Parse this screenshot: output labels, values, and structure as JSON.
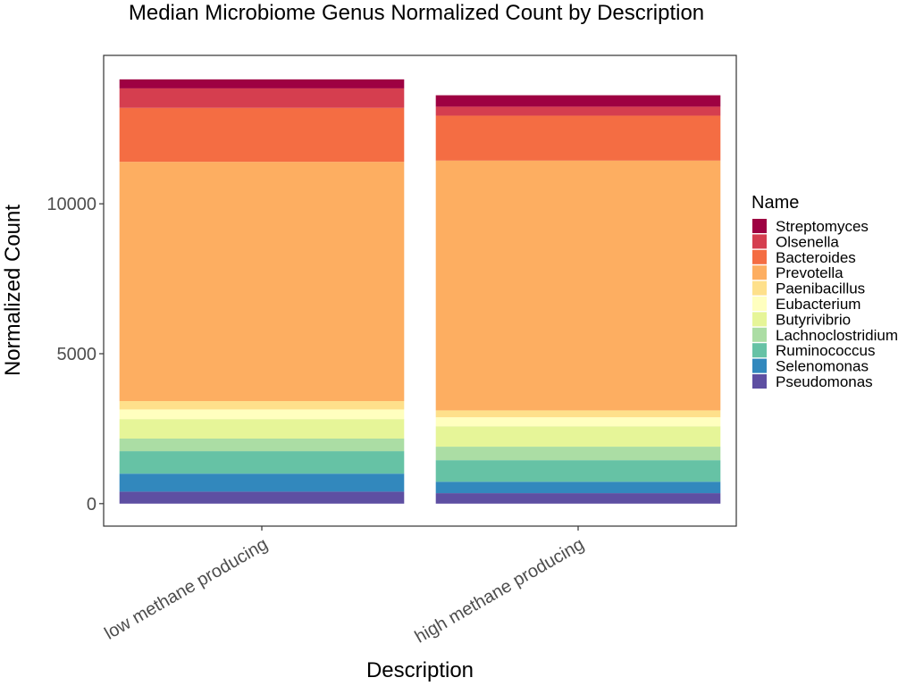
{
  "chart_data": {
    "type": "bar",
    "stacked": true,
    "title": "Median Microbiome Genus Normalized Count by Description",
    "xlabel": "Description",
    "ylabel": "Normalized Count",
    "categories": [
      "low methane producing",
      "high methane producing"
    ],
    "y_ticks": [
      0,
      5000,
      10000
    ],
    "y_tick_labels": [
      "0",
      "5000",
      "10000"
    ],
    "ylim": [
      -750,
      14950
    ],
    "grid": false,
    "legend": {
      "title": "Name",
      "placement": "right"
    },
    "series": [
      {
        "name": "Pseudomonas",
        "color": "#5E4FA2",
        "values": [
          400,
          350
        ]
      },
      {
        "name": "Selenomonas",
        "color": "#3288BD",
        "values": [
          600,
          380
        ]
      },
      {
        "name": "Ruminococcus",
        "color": "#66C2A5",
        "values": [
          750,
          720
        ]
      },
      {
        "name": "Lachnoclostridium",
        "color": "#ABDDA4",
        "values": [
          420,
          450
        ]
      },
      {
        "name": "Butyrivibrio",
        "color": "#E6F598",
        "values": [
          650,
          680
        ]
      },
      {
        "name": "Eubacterium",
        "color": "#FFFFBF",
        "values": [
          320,
          300
        ]
      },
      {
        "name": "Paenibacillus",
        "color": "#FEE08B",
        "values": [
          280,
          230
        ]
      },
      {
        "name": "Prevotella",
        "color": "#FDAE61",
        "values": [
          7980,
          8330
        ]
      },
      {
        "name": "Bacteroides",
        "color": "#F46D43",
        "values": [
          1800,
          1500
        ]
      },
      {
        "name": "Olsenella",
        "color": "#D53E4F",
        "values": [
          650,
          300
        ]
      },
      {
        "name": "Streptomyces",
        "color": "#9E0142",
        "values": [
          300,
          380
        ]
      }
    ]
  }
}
